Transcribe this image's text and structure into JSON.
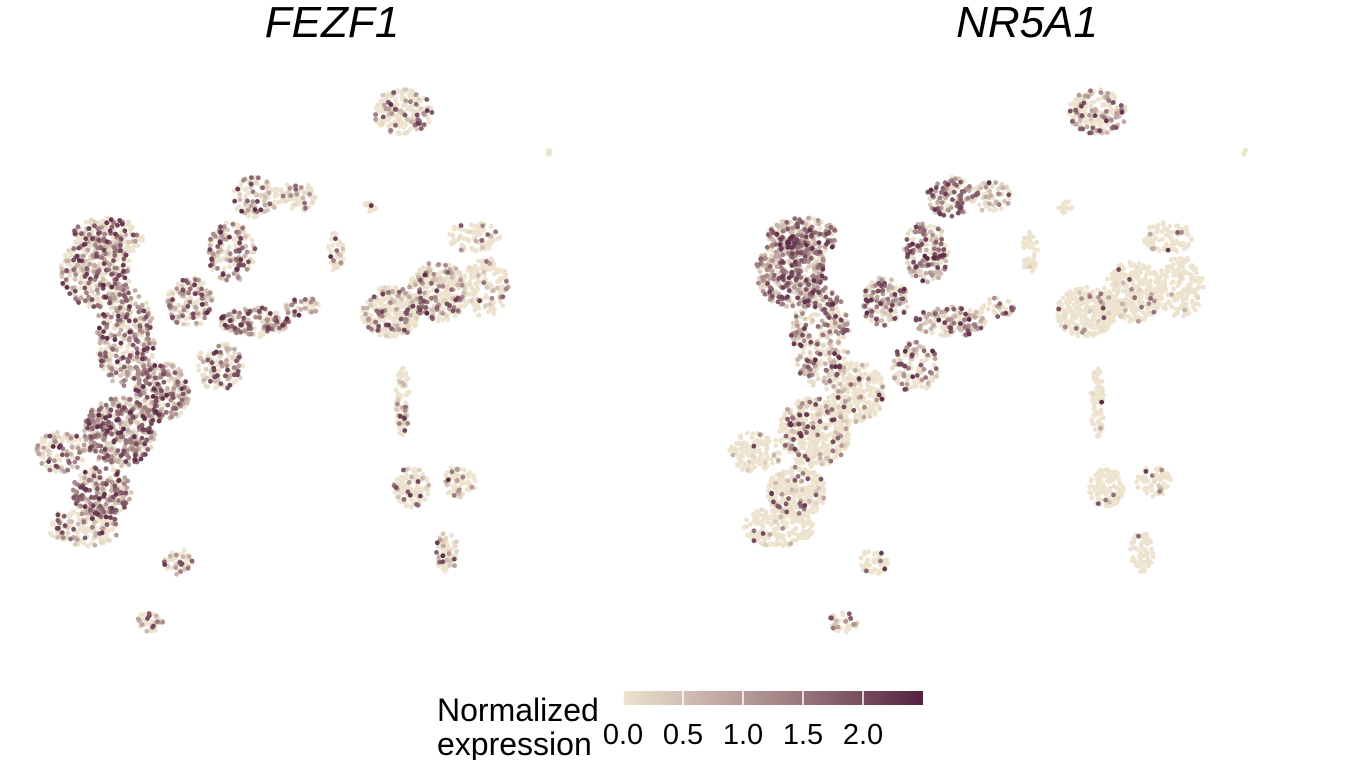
{
  "chart_data": {
    "type": "scatter",
    "subtype": "umap-feature-plot",
    "axes_visible": false,
    "grid": false,
    "legend_placement": "bottom",
    "color_scale": {
      "low": "#ede3cf",
      "mid": "#a88a8b",
      "high": "#55223f",
      "range": [
        0,
        2.5
      ]
    },
    "legend": {
      "title_line1": "Normalized",
      "title_line2": "expression",
      "ticks": [
        {
          "value": 0.0,
          "label": "0.0"
        },
        {
          "value": 0.5,
          "label": "0.5"
        },
        {
          "value": 1.0,
          "label": "1.0"
        },
        {
          "value": 1.5,
          "label": "1.5"
        },
        {
          "value": 2.0,
          "label": "2.0"
        }
      ]
    },
    "panels": [
      {
        "title": "FEZF1",
        "seed": 7,
        "clusters": [
          {
            "cx": 0.06,
            "cy": 0.78,
            "rx": 0.045,
            "ry": 0.04,
            "n": 120,
            "level": 0.55
          },
          {
            "cx": 0.16,
            "cy": 0.74,
            "rx": 0.06,
            "ry": 0.07,
            "n": 420,
            "level": 0.95
          },
          {
            "cx": 0.23,
            "cy": 0.66,
            "rx": 0.05,
            "ry": 0.06,
            "n": 260,
            "level": 0.85
          },
          {
            "cx": 0.13,
            "cy": 0.86,
            "rx": 0.05,
            "ry": 0.05,
            "n": 260,
            "level": 0.7
          },
          {
            "cx": 0.1,
            "cy": 0.93,
            "rx": 0.06,
            "ry": 0.04,
            "n": 170,
            "level": 0.4
          },
          {
            "cx": 0.17,
            "cy": 0.55,
            "rx": 0.05,
            "ry": 0.1,
            "n": 300,
            "level": 0.8
          },
          {
            "cx": 0.12,
            "cy": 0.42,
            "rx": 0.06,
            "ry": 0.07,
            "n": 360,
            "level": 0.6
          },
          {
            "cx": 0.14,
            "cy": 0.35,
            "rx": 0.06,
            "ry": 0.04,
            "n": 220,
            "level": 0.45
          },
          {
            "cx": 0.28,
            "cy": 0.48,
            "rx": 0.04,
            "ry": 0.05,
            "n": 140,
            "level": 0.7
          },
          {
            "cx": 0.35,
            "cy": 0.38,
            "rx": 0.04,
            "ry": 0.06,
            "n": 170,
            "level": 0.65
          },
          {
            "cx": 0.39,
            "cy": 0.27,
            "rx": 0.04,
            "ry": 0.04,
            "n": 110,
            "level": 0.45
          },
          {
            "cx": 0.46,
            "cy": 0.27,
            "rx": 0.035,
            "ry": 0.03,
            "n": 70,
            "level": 0.35
          },
          {
            "cx": 0.39,
            "cy": 0.52,
            "rx": 0.06,
            "ry": 0.03,
            "n": 150,
            "level": 0.75
          },
          {
            "cx": 0.47,
            "cy": 0.49,
            "rx": 0.03,
            "ry": 0.02,
            "n": 40,
            "level": 0.6
          },
          {
            "cx": 0.33,
            "cy": 0.61,
            "rx": 0.04,
            "ry": 0.05,
            "n": 120,
            "level": 0.6
          },
          {
            "cx": 0.26,
            "cy": 1.0,
            "rx": 0.025,
            "ry": 0.025,
            "n": 45,
            "level": 0.5
          },
          {
            "cx": 0.21,
            "cy": 1.12,
            "rx": 0.025,
            "ry": 0.02,
            "n": 40,
            "level": 0.5
          },
          {
            "cx": 0.64,
            "cy": 0.1,
            "rx": 0.05,
            "ry": 0.045,
            "n": 190,
            "level": 0.35
          },
          {
            "cx": 0.89,
            "cy": 0.18,
            "rx": 0.006,
            "ry": 0.006,
            "n": 4,
            "level": 0.0
          },
          {
            "cx": 0.585,
            "cy": 0.29,
            "rx": 0.012,
            "ry": 0.012,
            "n": 18,
            "level": 0.1
          },
          {
            "cx": 0.525,
            "cy": 0.38,
            "rx": 0.015,
            "ry": 0.04,
            "n": 40,
            "level": 0.3
          },
          {
            "cx": 0.62,
            "cy": 0.5,
            "rx": 0.05,
            "ry": 0.05,
            "n": 320,
            "level": 0.3
          },
          {
            "cx": 0.7,
            "cy": 0.46,
            "rx": 0.05,
            "ry": 0.06,
            "n": 300,
            "level": 0.35
          },
          {
            "cx": 0.78,
            "cy": 0.45,
            "rx": 0.04,
            "ry": 0.06,
            "n": 150,
            "level": 0.25
          },
          {
            "cx": 0.76,
            "cy": 0.35,
            "rx": 0.045,
            "ry": 0.03,
            "n": 90,
            "level": 0.2
          },
          {
            "cx": 0.64,
            "cy": 0.68,
            "rx": 0.012,
            "ry": 0.07,
            "n": 90,
            "level": 0.2
          },
          {
            "cx": 0.655,
            "cy": 0.85,
            "rx": 0.03,
            "ry": 0.04,
            "n": 110,
            "level": 0.2
          },
          {
            "cx": 0.735,
            "cy": 0.84,
            "rx": 0.03,
            "ry": 0.03,
            "n": 70,
            "level": 0.25
          },
          {
            "cx": 0.715,
            "cy": 0.98,
            "rx": 0.02,
            "ry": 0.04,
            "n": 70,
            "level": 0.3
          }
        ]
      },
      {
        "title": "NR5A1",
        "seed": 23,
        "clusters": [
          {
            "cx": 0.06,
            "cy": 0.78,
            "rx": 0.045,
            "ry": 0.04,
            "n": 120,
            "level": 0.15
          },
          {
            "cx": 0.16,
            "cy": 0.74,
            "rx": 0.06,
            "ry": 0.07,
            "n": 420,
            "level": 0.25
          },
          {
            "cx": 0.23,
            "cy": 0.66,
            "rx": 0.05,
            "ry": 0.06,
            "n": 260,
            "level": 0.2
          },
          {
            "cx": 0.13,
            "cy": 0.86,
            "rx": 0.05,
            "ry": 0.05,
            "n": 260,
            "level": 0.15
          },
          {
            "cx": 0.1,
            "cy": 0.93,
            "rx": 0.06,
            "ry": 0.04,
            "n": 170,
            "level": 0.1
          },
          {
            "cx": 0.17,
            "cy": 0.55,
            "rx": 0.05,
            "ry": 0.1,
            "n": 300,
            "level": 0.7
          },
          {
            "cx": 0.12,
            "cy": 0.42,
            "rx": 0.06,
            "ry": 0.07,
            "n": 360,
            "level": 0.95
          },
          {
            "cx": 0.14,
            "cy": 0.35,
            "rx": 0.06,
            "ry": 0.04,
            "n": 220,
            "level": 0.85
          },
          {
            "cx": 0.28,
            "cy": 0.48,
            "rx": 0.04,
            "ry": 0.05,
            "n": 140,
            "level": 0.8
          },
          {
            "cx": 0.35,
            "cy": 0.38,
            "rx": 0.04,
            "ry": 0.06,
            "n": 170,
            "level": 0.85
          },
          {
            "cx": 0.39,
            "cy": 0.27,
            "rx": 0.04,
            "ry": 0.04,
            "n": 110,
            "level": 0.9
          },
          {
            "cx": 0.46,
            "cy": 0.27,
            "rx": 0.035,
            "ry": 0.03,
            "n": 70,
            "level": 0.6
          },
          {
            "cx": 0.39,
            "cy": 0.52,
            "rx": 0.06,
            "ry": 0.03,
            "n": 150,
            "level": 0.75
          },
          {
            "cx": 0.47,
            "cy": 0.49,
            "rx": 0.03,
            "ry": 0.02,
            "n": 40,
            "level": 0.5
          },
          {
            "cx": 0.33,
            "cy": 0.61,
            "rx": 0.04,
            "ry": 0.05,
            "n": 120,
            "level": 0.55
          },
          {
            "cx": 0.26,
            "cy": 1.0,
            "rx": 0.025,
            "ry": 0.025,
            "n": 45,
            "level": 0.1
          },
          {
            "cx": 0.21,
            "cy": 1.12,
            "rx": 0.025,
            "ry": 0.02,
            "n": 40,
            "level": 0.4
          },
          {
            "cx": 0.64,
            "cy": 0.1,
            "rx": 0.05,
            "ry": 0.045,
            "n": 190,
            "level": 0.45
          },
          {
            "cx": 0.89,
            "cy": 0.18,
            "rx": 0.006,
            "ry": 0.006,
            "n": 4,
            "level": 0.0
          },
          {
            "cx": 0.585,
            "cy": 0.29,
            "rx": 0.012,
            "ry": 0.012,
            "n": 18,
            "level": 0.05
          },
          {
            "cx": 0.525,
            "cy": 0.38,
            "rx": 0.015,
            "ry": 0.04,
            "n": 40,
            "level": 0.05
          },
          {
            "cx": 0.62,
            "cy": 0.5,
            "rx": 0.05,
            "ry": 0.05,
            "n": 320,
            "level": 0.08
          },
          {
            "cx": 0.7,
            "cy": 0.46,
            "rx": 0.05,
            "ry": 0.06,
            "n": 300,
            "level": 0.08
          },
          {
            "cx": 0.78,
            "cy": 0.45,
            "rx": 0.04,
            "ry": 0.06,
            "n": 150,
            "level": 0.05
          },
          {
            "cx": 0.76,
            "cy": 0.35,
            "rx": 0.045,
            "ry": 0.03,
            "n": 90,
            "level": 0.05
          },
          {
            "cx": 0.64,
            "cy": 0.68,
            "rx": 0.012,
            "ry": 0.07,
            "n": 90,
            "level": 0.05
          },
          {
            "cx": 0.655,
            "cy": 0.85,
            "rx": 0.03,
            "ry": 0.04,
            "n": 110,
            "level": 0.05
          },
          {
            "cx": 0.735,
            "cy": 0.84,
            "rx": 0.03,
            "ry": 0.03,
            "n": 70,
            "level": 0.1
          },
          {
            "cx": 0.715,
            "cy": 0.98,
            "rx": 0.02,
            "ry": 0.04,
            "n": 70,
            "level": 0.05
          }
        ]
      }
    ]
  }
}
